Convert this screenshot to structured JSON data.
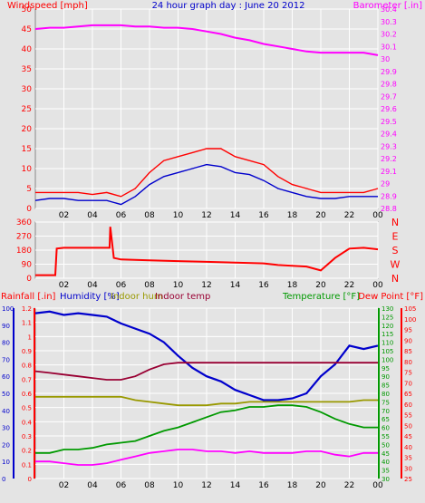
{
  "title": "24 hour graph day : June 20 2012",
  "x_ticks": [
    "02",
    "04",
    "06",
    "08",
    "10",
    "12",
    "14",
    "16",
    "18",
    "20",
    "22",
    "00"
  ],
  "colors": {
    "background": "#e4e4e4",
    "red": "#ff0000",
    "blue": "#0000cc",
    "magenta": "#ff00ff",
    "olive": "#999900",
    "maroon": "#990033",
    "green": "#009900",
    "yellow": "#ffff66",
    "grid": "#ffffff"
  },
  "chart_data": [
    {
      "type": "line",
      "panel": "wind-barometer",
      "left_axis": {
        "label": "Windspeed [mph]",
        "ticks": [
          "0",
          "5",
          "10",
          "15",
          "20",
          "25",
          "30",
          "35",
          "40",
          "45",
          "50"
        ],
        "ylim": [
          0,
          50
        ]
      },
      "right_axis": {
        "label": "Barometer [.in]",
        "ticks": [
          "28.8",
          "28.9",
          "29",
          "29.1",
          "29.2",
          "29.3",
          "29.4",
          "29.5",
          "29.6",
          "29.7",
          "29.8",
          "29.9",
          "30",
          "30.1",
          "30.2",
          "30.3",
          "30.4"
        ],
        "ylim": [
          28.8,
          30.4
        ]
      },
      "x": [
        0,
        1,
        2,
        3,
        4,
        5,
        6,
        7,
        8,
        9,
        10,
        11,
        12,
        13,
        14,
        15,
        16,
        17,
        18,
        19,
        20,
        21,
        22,
        23,
        24
      ],
      "series": [
        {
          "axis": "right",
          "color": "#ff00ff",
          "values": [
            30.24,
            30.25,
            30.25,
            30.26,
            30.27,
            30.27,
            30.27,
            30.26,
            30.26,
            30.25,
            30.25,
            30.24,
            30.22,
            30.2,
            30.17,
            30.15,
            30.12,
            30.1,
            30.08,
            30.06,
            30.05,
            30.05,
            30.05,
            30.05,
            30.03
          ]
        },
        {
          "axis": "left",
          "color": "#ff0000",
          "values": [
            4,
            4,
            4,
            4,
            3.5,
            4,
            3,
            5,
            9,
            12,
            13,
            14,
            15,
            15,
            13,
            12,
            11,
            8,
            6,
            5,
            4,
            4,
            4,
            4,
            5
          ]
        },
        {
          "axis": "left",
          "color": "#0000cc",
          "values": [
            2,
            2.5,
            2.5,
            2,
            2,
            2,
            1,
            3,
            6,
            8,
            9,
            10,
            11,
            10.5,
            9,
            8.5,
            7,
            5,
            4,
            3,
            2.5,
            2.5,
            3,
            3,
            3
          ]
        }
      ]
    },
    {
      "type": "line",
      "panel": "wind-direction",
      "left_axis": {
        "label": "",
        "ticks": [
          "0",
          "90",
          "180",
          "270",
          "360"
        ],
        "ylim": [
          0,
          360
        ]
      },
      "right_axis": {
        "label": "",
        "ticks": [
          "N",
          "W",
          "S",
          "E",
          "N"
        ]
      },
      "x": [
        0,
        1,
        1.4,
        1.5,
        2,
        3,
        4,
        5,
        5.2,
        5.25,
        5.5,
        6,
        8,
        10,
        12,
        14,
        16,
        17,
        18,
        19,
        20,
        20.5,
        21,
        22,
        23,
        24
      ],
      "series": [
        {
          "color": "#ff0000",
          "values": [
            20,
            20,
            20,
            190,
            195,
            195,
            195,
            195,
            195,
            330,
            130,
            120,
            115,
            110,
            105,
            100,
            95,
            85,
            80,
            75,
            50,
            90,
            130,
            190,
            195,
            185
          ]
        }
      ]
    },
    {
      "type": "line",
      "panel": "rain-humidity-temperature",
      "axes": [
        {
          "label": "Rainfall [.in]",
          "color": "#ff0000",
          "ticks": [
            "0",
            "0.1",
            "0.2",
            "0.3",
            "0.4",
            "0.5",
            "0.6",
            "0.7",
            "0.8",
            "0.9",
            "1",
            "1.1",
            "1.2"
          ],
          "ylim": [
            0,
            1.2
          ]
        },
        {
          "label": "Humidity [%]",
          "color": "#0000cc",
          "ticks": [
            "0",
            "10",
            "20",
            "30",
            "40",
            "50",
            "60",
            "70",
            "80",
            "90",
            "100"
          ],
          "ylim": [
            0,
            100
          ]
        },
        {
          "label": "Indoor hum",
          "color": "#999900"
        },
        {
          "label": "Indoor temp",
          "color": "#990033"
        },
        {
          "label": "Temperature [°F]",
          "color": "#009900",
          "ticks": [
            "30",
            "35",
            "40",
            "45",
            "50",
            "55",
            "60",
            "65",
            "70",
            "75",
            "80",
            "85",
            "90",
            "95",
            "100",
            "105",
            "110",
            "115",
            "120",
            "125",
            "130"
          ],
          "ylim": [
            30,
            130
          ]
        },
        {
          "label": "Dew Point [°F]",
          "color": "#ff0000",
          "ticks": [
            "25",
            "30",
            "35",
            "40",
            "45",
            "50",
            "55",
            "60",
            "65",
            "70",
            "75",
            "80",
            "85",
            "90",
            "95",
            "100",
            "105"
          ],
          "ylim": [
            25,
            105
          ]
        }
      ],
      "x": [
        0,
        1,
        2,
        3,
        4,
        5,
        6,
        7,
        8,
        9,
        10,
        11,
        12,
        13,
        14,
        15,
        16,
        17,
        18,
        19,
        20,
        21,
        22,
        23,
        24
      ],
      "series": [
        {
          "name": "Humidity [%]",
          "axis": "humidity",
          "color": "#0000cc",
          "values": [
            97,
            98,
            96,
            97,
            96,
            95,
            91,
            88,
            85,
            80,
            72,
            65,
            60,
            57,
            52,
            49,
            46,
            46,
            47,
            50,
            60,
            67,
            78,
            76,
            78
          ]
        },
        {
          "name": "Indoor temp",
          "axis": "temperature",
          "color": "#990033",
          "values": [
            93,
            92,
            91,
            90,
            89,
            88,
            88,
            90,
            94,
            97,
            98,
            98,
            98,
            98,
            98,
            98,
            98,
            98,
            98,
            98,
            98,
            98,
            98,
            98,
            98
          ]
        },
        {
          "name": "Indoor hum",
          "axis": "humidity",
          "color": "#999900",
          "values": [
            48,
            48,
            48,
            48,
            48,
            48,
            48,
            46,
            45,
            44,
            43,
            43,
            43,
            44,
            44,
            45,
            45,
            45,
            45,
            45,
            45,
            45,
            45,
            46,
            46
          ]
        },
        {
          "name": "Temperature [°F]",
          "axis": "temperature",
          "color": "#009900",
          "values": [
            45,
            45,
            47,
            47,
            48,
            50,
            51,
            52,
            55,
            58,
            60,
            63,
            66,
            69,
            70,
            72,
            72,
            73,
            73,
            72,
            69,
            65,
            62,
            60,
            60
          ]
        },
        {
          "name": "Dew Point [°F]",
          "axis": "temperature",
          "color": "#ff00ff",
          "values": [
            40,
            40,
            39,
            38,
            38,
            39,
            41,
            43,
            45,
            46,
            47,
            47,
            46,
            46,
            45,
            46,
            45,
            45,
            45,
            46,
            46,
            44,
            43,
            45,
            45
          ]
        }
      ]
    }
  ]
}
